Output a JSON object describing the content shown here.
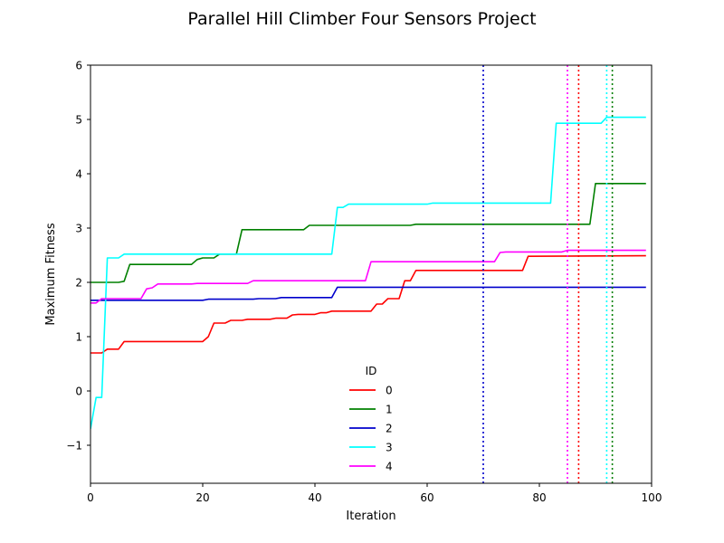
{
  "chart_data": {
    "type": "line",
    "title": "Parallel Hill Climber Four Sensors Project",
    "xlabel": "Iteration",
    "ylabel": "Maximum Fitness",
    "xlim": [
      0,
      100
    ],
    "ylim": [
      -1.7,
      6
    ],
    "xticks": [
      0,
      20,
      40,
      60,
      80,
      100
    ],
    "yticks": [
      -1,
      0,
      1,
      2,
      3,
      4,
      5,
      6
    ],
    "xtick_labels": [
      "0",
      "20",
      "40",
      "60",
      "80",
      "100"
    ],
    "ytick_labels": [
      "−1",
      "0",
      "1",
      "2",
      "3",
      "4",
      "5",
      "6"
    ],
    "grid": false,
    "legend": {
      "title": "ID",
      "placement": "lower-center"
    },
    "series": [
      {
        "name": "0",
        "color": "#ff0000",
        "vline_x": 87,
        "points": [
          [
            0,
            0.7
          ],
          [
            2,
            0.7
          ],
          [
            3,
            0.77
          ],
          [
            5,
            0.77
          ],
          [
            6,
            0.91
          ],
          [
            20,
            0.91
          ],
          [
            21,
            1.0
          ],
          [
            22,
            1.25
          ],
          [
            24,
            1.25
          ],
          [
            25,
            1.3
          ],
          [
            27,
            1.3
          ],
          [
            28,
            1.32
          ],
          [
            32,
            1.32
          ],
          [
            33,
            1.34
          ],
          [
            35,
            1.34
          ],
          [
            36,
            1.4
          ],
          [
            37,
            1.41
          ],
          [
            40,
            1.41
          ],
          [
            41,
            1.44
          ],
          [
            42,
            1.44
          ],
          [
            43,
            1.47
          ],
          [
            50,
            1.47
          ],
          [
            51,
            1.6
          ],
          [
            52,
            1.6
          ],
          [
            53,
            1.7
          ],
          [
            55,
            1.7
          ],
          [
            56,
            2.03
          ],
          [
            57,
            2.03
          ],
          [
            58,
            2.22
          ],
          [
            77,
            2.22
          ],
          [
            78,
            2.48
          ],
          [
            99,
            2.49
          ]
        ]
      },
      {
        "name": "1",
        "color": "#008000",
        "vline_x": 93,
        "points": [
          [
            0,
            2.0
          ],
          [
            5,
            2.0
          ],
          [
            6,
            2.02
          ],
          [
            7,
            2.33
          ],
          [
            18,
            2.33
          ],
          [
            19,
            2.42
          ],
          [
            20,
            2.45
          ],
          [
            22,
            2.45
          ],
          [
            23,
            2.52
          ],
          [
            26,
            2.52
          ],
          [
            27,
            2.97
          ],
          [
            38,
            2.97
          ],
          [
            39,
            3.05
          ],
          [
            57,
            3.05
          ],
          [
            58,
            3.07
          ],
          [
            89,
            3.07
          ],
          [
            90,
            3.82
          ],
          [
            99,
            3.82
          ]
        ]
      },
      {
        "name": "2",
        "color": "#0000cc",
        "vline_x": 70,
        "points": [
          [
            0,
            1.67
          ],
          [
            20,
            1.67
          ],
          [
            21,
            1.69
          ],
          [
            29,
            1.69
          ],
          [
            30,
            1.7
          ],
          [
            33,
            1.7
          ],
          [
            34,
            1.72
          ],
          [
            43,
            1.72
          ],
          [
            44,
            1.91
          ],
          [
            99,
            1.91
          ]
        ]
      },
      {
        "name": "3",
        "color": "#00ffff",
        "vline_x": 92,
        "points": [
          [
            0,
            -0.7
          ],
          [
            1,
            -0.12
          ],
          [
            2,
            -0.12
          ],
          [
            3,
            2.45
          ],
          [
            5,
            2.45
          ],
          [
            6,
            2.52
          ],
          [
            43,
            2.52
          ],
          [
            44,
            3.38
          ],
          [
            45,
            3.38
          ],
          [
            46,
            3.44
          ],
          [
            60,
            3.44
          ],
          [
            61,
            3.46
          ],
          [
            82,
            3.46
          ],
          [
            83,
            4.93
          ],
          [
            91,
            4.93
          ],
          [
            92,
            5.04
          ],
          [
            99,
            5.04
          ]
        ]
      },
      {
        "name": "4",
        "color": "#ff00ff",
        "vline_x": 85,
        "points": [
          [
            0,
            1.62
          ],
          [
            1,
            1.62
          ],
          [
            2,
            1.7
          ],
          [
            9,
            1.7
          ],
          [
            10,
            1.88
          ],
          [
            11,
            1.9
          ],
          [
            12,
            1.97
          ],
          [
            18,
            1.97
          ],
          [
            19,
            1.98
          ],
          [
            28,
            1.98
          ],
          [
            29,
            2.03
          ],
          [
            49,
            2.03
          ],
          [
            50,
            2.38
          ],
          [
            72,
            2.38
          ],
          [
            73,
            2.55
          ],
          [
            74,
            2.56
          ],
          [
            84,
            2.56
          ],
          [
            85,
            2.59
          ],
          [
            99,
            2.59
          ]
        ]
      }
    ]
  }
}
